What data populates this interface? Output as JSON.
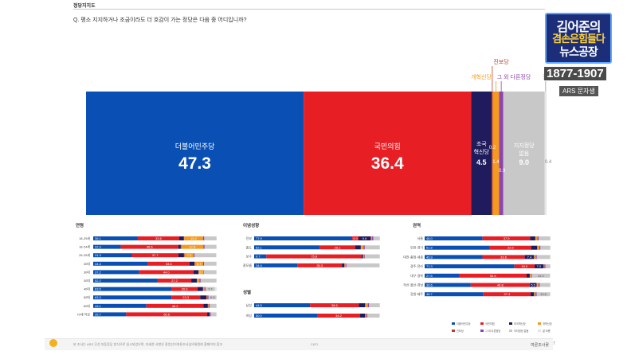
{
  "header": {
    "title": "정당지지도",
    "question": "Q. 평소 지지하거나 조금이라도 더 호감이 가는 정당은 다음 중 어디입니까?"
  },
  "broadcast": {
    "logo_line1": "김어준의",
    "logo_line2": "겸손은힘들다",
    "logo_line3": "뉴스공장",
    "phone": "1877-1907",
    "ars_label": "ARS 문자생"
  },
  "colors": {
    "dem": "#0a50b4",
    "ppp": "#e81e25",
    "rebuild": "#1f1b5c",
    "progressive": "#c0392b",
    "reform": "#f39a1f",
    "other": "#8e44ad",
    "none": "#c8c8c8",
    "dk": "#e6e6e6"
  },
  "chart_data": [
    {
      "type": "bar",
      "stacked": true,
      "orientation": "horizontal-100",
      "series": [
        {
          "name": "더불어민주당",
          "value": 47.3,
          "label": "47.3",
          "color_key": "dem"
        },
        {
          "name": "국민의힘",
          "value": 36.4,
          "label": "36.4",
          "color_key": "ppp"
        },
        {
          "name": "조국혁신당",
          "value": 4.5,
          "label": "4.5",
          "color_key": "rebuild"
        },
        {
          "name": "진보당",
          "value": 0.2,
          "label": "0.2",
          "color_key": "progressive"
        },
        {
          "name": "개혁신당",
          "value": 1.4,
          "label": "1.4",
          "color_key": "reform"
        },
        {
          "name": "그 외 다른정당",
          "value": 0.9,
          "label": "0.9",
          "color_key": "other"
        },
        {
          "name": "지지정당 없음",
          "value": 9.0,
          "label": "9.0",
          "color_key": "none"
        },
        {
          "name": "잘 모름",
          "value": 0.4,
          "label": "0.4",
          "color_key": "dk"
        }
      ],
      "big_labels": {
        "dem": "더불어민주당",
        "ppp": "국민의힘",
        "rebuild": "조국\n혁신당",
        "none": "지지정당\n없음"
      },
      "callouts": {
        "progressive": "진보당",
        "reform": "개혁신당",
        "other": "그 외 다른정당",
        "dk": "잘 모름"
      }
    }
  ],
  "breakdown": {
    "groups": [
      {
        "title": "연령",
        "rows": [
          {
            "label": "18-29세",
            "values": [
              36.1,
              33.6,
              3.5,
              0.5,
              15.2,
              1.0,
              10.0,
              0.1
            ],
            "labels": [
              "36.1",
              "33.6",
              "",
              "",
              "15.2",
              "",
              "",
              ""
            ]
          },
          {
            "label": "18-24세",
            "values": [
              22.3,
              46.6,
              2.0,
              0.5,
              17.8,
              1.0,
              9.6,
              0.2
            ],
            "labels": [
              "22.3",
              "46.6",
              "",
              "",
              "17.8",
              "",
              "",
              ""
            ]
          },
          {
            "label": "25-29세",
            "values": [
              31.3,
              37.7,
              4.5,
              0.5,
              7.3,
              0.8,
              17.4,
              0.5
            ],
            "labels": [
              "31.3",
              "37.7",
              "",
              "",
              "7.3",
              "",
              "",
              ""
            ]
          },
          {
            "label": "30대",
            "values": [
              44.4,
              33.6,
              4.0,
              0.3,
              6.7,
              0.8,
              10.0,
              0.2
            ],
            "labels": [
              "44.4",
              "33.6",
              "",
              "",
              "6.7",
              "",
              "",
              ""
            ]
          },
          {
            "label": "30대",
            "values": [
              37.2,
              44.0,
              4.0,
              0.2,
              3.7,
              0.5,
              10.2,
              0.2
            ],
            "labels": [
              "37.2",
              "44.0",
              "",
              "",
              "3.7",
              "",
              "",
              ""
            ]
          },
          {
            "label": "30대",
            "values": [
              52.2,
              27.2,
              4.5,
              0.2,
              2.0,
              0.9,
              12.8,
              0.2
            ],
            "labels": [
              "52.2",
              "27.2",
              "",
              "",
              "",
              "",
              "",
              ""
            ]
          },
          {
            "label": "40대",
            "values": [
              63.5,
              20.9,
              4.5,
              0.2,
              1.0,
              0.8,
              7.7,
              1.4
            ],
            "labels": [
              "63.5",
              "20.9",
              "",
              "",
              "",
              "",
              "7.7",
              ""
            ]
          },
          {
            "label": "50대",
            "values": [
              63.3,
              23.3,
              5.2,
              0.1,
              0.5,
              1.0,
              6.3,
              0.3
            ],
            "labels": [
              "63.3",
              "23.3",
              "",
              "",
              "",
              "",
              "6.3",
              ""
            ]
          },
          {
            "label": "60대",
            "values": [
              43.1,
              46.2,
              3.5,
              0.1,
              0.5,
              0.8,
              5.5,
              0.3
            ],
            "labels": [
              "43.1",
              "46.2",
              "",
              "",
              "",
              "",
              "",
              ""
            ]
          },
          {
            "label": "70세 이상",
            "values": [
              26.7,
              65.6,
              2.0,
              0.1,
              0.2,
              0.6,
              4.6,
              0.2
            ],
            "labels": [
              "26.7",
              "65.6",
              "",
              "",
              "",
              "",
              "",
              ""
            ]
          }
        ]
      },
      {
        "title": "이념성향",
        "rows": [
          {
            "label": "진보",
            "values": [
              77.9,
              5.0,
              9.6,
              0.5,
              0.7,
              1.0,
              5.0,
              0.3
            ],
            "labels": [
              "77.9",
              "5.0",
              "9.6",
              "",
              "",
              "",
              "",
              ""
            ]
          },
          {
            "label": "중도",
            "values": [
              52.1,
              28.1,
              4.5,
              0.2,
              2.0,
              1.0,
              11.8,
              0.3
            ],
            "labels": [
              "52.1",
              "28.1",
              "",
              "",
              "",
              "",
              "",
              ""
            ]
          },
          {
            "label": "보수",
            "values": [
              9.7,
              75.8,
              1.0,
              0.1,
              1.0,
              0.4,
              11.7,
              0.3
            ],
            "labels": [
              "9.7",
              "75.8",
              "",
              "",
              "",
              "",
              "",
              ""
            ]
          },
          {
            "label": "잘모름",
            "values": [
              34.4,
              35.3,
              2.0,
              0.3,
              1.0,
              0.5,
              26.0,
              0.5
            ],
            "labels": [
              "34.4",
              "35.3",
              "",
              "",
              "",
              "",
              "",
              ""
            ]
          }
        ]
      },
      {
        "title": "성별",
        "rows": [
          {
            "label": "남성",
            "values": [
              44.5,
              38.6,
              5.0,
              0.2,
              2.0,
              1.0,
              8.4,
              0.3
            ],
            "labels": [
              "44.5",
              "38.6",
              "",
              "",
              "",
              "",
              "",
              ""
            ]
          },
          {
            "label": "여성",
            "values": [
              50.0,
              34.2,
              4.0,
              0.2,
              0.8,
              0.8,
              9.6,
              0.4
            ],
            "labels": [
              "50.0",
              "34.2",
              "",
              "",
              "",
              "",
              "",
              ""
            ]
          }
        ]
      },
      {
        "title": "권역",
        "rows": [
          {
            "label": "서울",
            "values": [
              46.0,
              37.9,
              4.0,
              0.2,
              1.5,
              0.9,
              9.2,
              0.3
            ],
            "labels": [
              "46.0",
              "37.9",
              "",
              "",
              "",
              "",
              "",
              ""
            ]
          },
          {
            "label": "인천·경기",
            "values": [
              51.8,
              32.8,
              4.8,
              0.2,
              1.5,
              0.9,
              7.7,
              0.3
            ],
            "labels": [
              "51.8",
              "32.8",
              "",
              "",
              "",
              "",
              "",
              ""
            ]
          },
          {
            "label": "대전·충청·세종",
            "values": [
              45.9,
              33.6,
              7.4,
              0.2,
              1.2,
              0.8,
              10.6,
              0.3
            ],
            "labels": [
              "45.9",
              "33.6",
              "7.4",
              "",
              "",
              "",
              "",
              ""
            ]
          },
          {
            "label": "광주·전라",
            "values": [
              71.3,
              16.0,
              7.0,
              0.3,
              0.5,
              0.9,
              3.8,
              0.2
            ],
            "labels": [
              "71.3",
              "16.0",
              "7.0",
              "",
              "",
              "",
              "",
              ""
            ]
          },
          {
            "label": "대구·경북",
            "values": [
              27.5,
              53.5,
              2.5,
              0.1,
              1.0,
              0.6,
              14.2,
              0.6
            ],
            "labels": [
              "27.5",
              "53.5",
              "",
              "",
              "",
              "",
              "14.2",
              ""
            ]
          },
          {
            "label": "부산·울산·경남",
            "values": [
              36.6,
              46.8,
              5.5,
              0.2,
              1.4,
              0.9,
              8.3,
              0.3
            ],
            "labels": [
              "36.6",
              "46.8",
              "5.5",
              "",
              "",
              "",
              "",
              ""
            ]
          },
          {
            "label": "강원·제주",
            "values": [
              46.7,
              37.4,
              2.8,
              0.2,
              1.0,
              0.9,
              10.6,
              0.4
            ],
            "labels": [
              "46.7",
              "37.4",
              "",
              "",
              "",
              "",
              "10.6",
              ""
            ]
          }
        ]
      }
    ],
    "legend": [
      {
        "name": "더불어민주당",
        "color_key": "dem"
      },
      {
        "name": "국민의힘",
        "color_key": "ppp"
      },
      {
        "name": "조국혁신당",
        "color_key": "rebuild"
      },
      {
        "name": "개혁신당",
        "color_key": "reform"
      },
      {
        "name": "진보당",
        "color_key": "progressive"
      },
      {
        "name": "그 외 다른정당",
        "color_key": "other"
      },
      {
        "name": "지지정당 없음",
        "color_key": "none"
      },
      {
        "name": "잘 모름",
        "color_key": "dk"
      }
    ]
  },
  "footer": {
    "note": "본 조사는 ARS 무선 자동응답 방식으로 실시되었으며, 자세한 사항은 중앙선거여론조사심의위원회 홈페이지 참조",
    "source": "CATI",
    "brand": "여론조사꽃",
    "page": "7"
  }
}
